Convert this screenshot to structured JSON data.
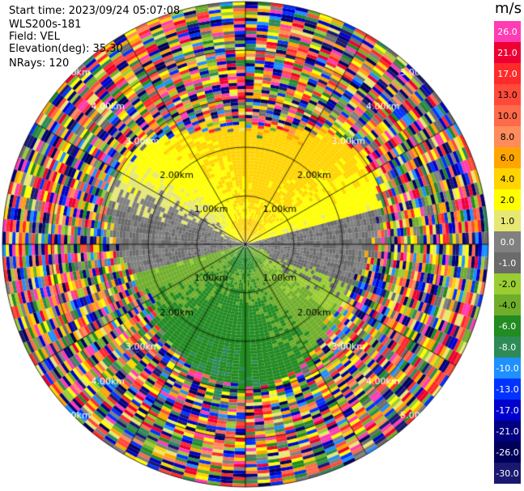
{
  "header": {
    "start_time": "Start time: 2023/09/24 05:07:08",
    "instrument": "WLS200s-181",
    "field": "Field: VEL",
    "elevation": "Elevation(deg): 35.30",
    "nrays": "NRays: 120"
  },
  "colorbar": {
    "unit": "m/s",
    "entries": [
      {
        "label": "26.0",
        "color": "#ff3cb4"
      },
      {
        "label": "21.0",
        "color": "#ee0033"
      },
      {
        "label": "17.0",
        "color": "#ff2a2a"
      },
      {
        "label": "13.0",
        "color": "#ff4a3a"
      },
      {
        "label": "10.0",
        "color": "#ff6a4a"
      },
      {
        "label": "8.0",
        "color": "#ff8c5a"
      },
      {
        "label": "6.0",
        "color": "#ffa500"
      },
      {
        "label": "4.0",
        "color": "#ffd400"
      },
      {
        "label": "2.0",
        "color": "#ffff00"
      },
      {
        "label": "1.0",
        "color": "#e6e873"
      },
      {
        "label": "0.0",
        "color": "#808080"
      },
      {
        "label": "-1.0",
        "color": "#6b6b6b"
      },
      {
        "label": "-2.0",
        "color": "#9acd32"
      },
      {
        "label": "-4.0",
        "color": "#6fae2a"
      },
      {
        "label": "-6.0",
        "color": "#228b22"
      },
      {
        "label": "-8.0",
        "color": "#2e8b57"
      },
      {
        "label": "-10.0",
        "color": "#1e90ff"
      },
      {
        "label": "-13.0",
        "color": "#0033ff"
      },
      {
        "label": "-17.0",
        "color": "#0000cd"
      },
      {
        "label": "-21.0",
        "color": "#000080"
      },
      {
        "label": "-26.0",
        "color": "#00005a"
      },
      {
        "label": "-30.0",
        "color": "#191970"
      }
    ]
  },
  "ppi": {
    "nrays": 120,
    "ring_labels": [
      [
        "1.00km",
        "1.00km",
        "1.00km",
        "1.00km"
      ],
      [
        "2.00km",
        "2.00km",
        "2.00km",
        "2.00km"
      ],
      [
        "3.00km",
        "3.00km",
        "3.00km",
        "3.00km"
      ],
      [
        "4.00km",
        "4.00km",
        "4.00km",
        "4.00km"
      ],
      [
        "5.00km",
        "5.00km",
        "5.00km",
        "5.00km"
      ]
    ]
  }
}
